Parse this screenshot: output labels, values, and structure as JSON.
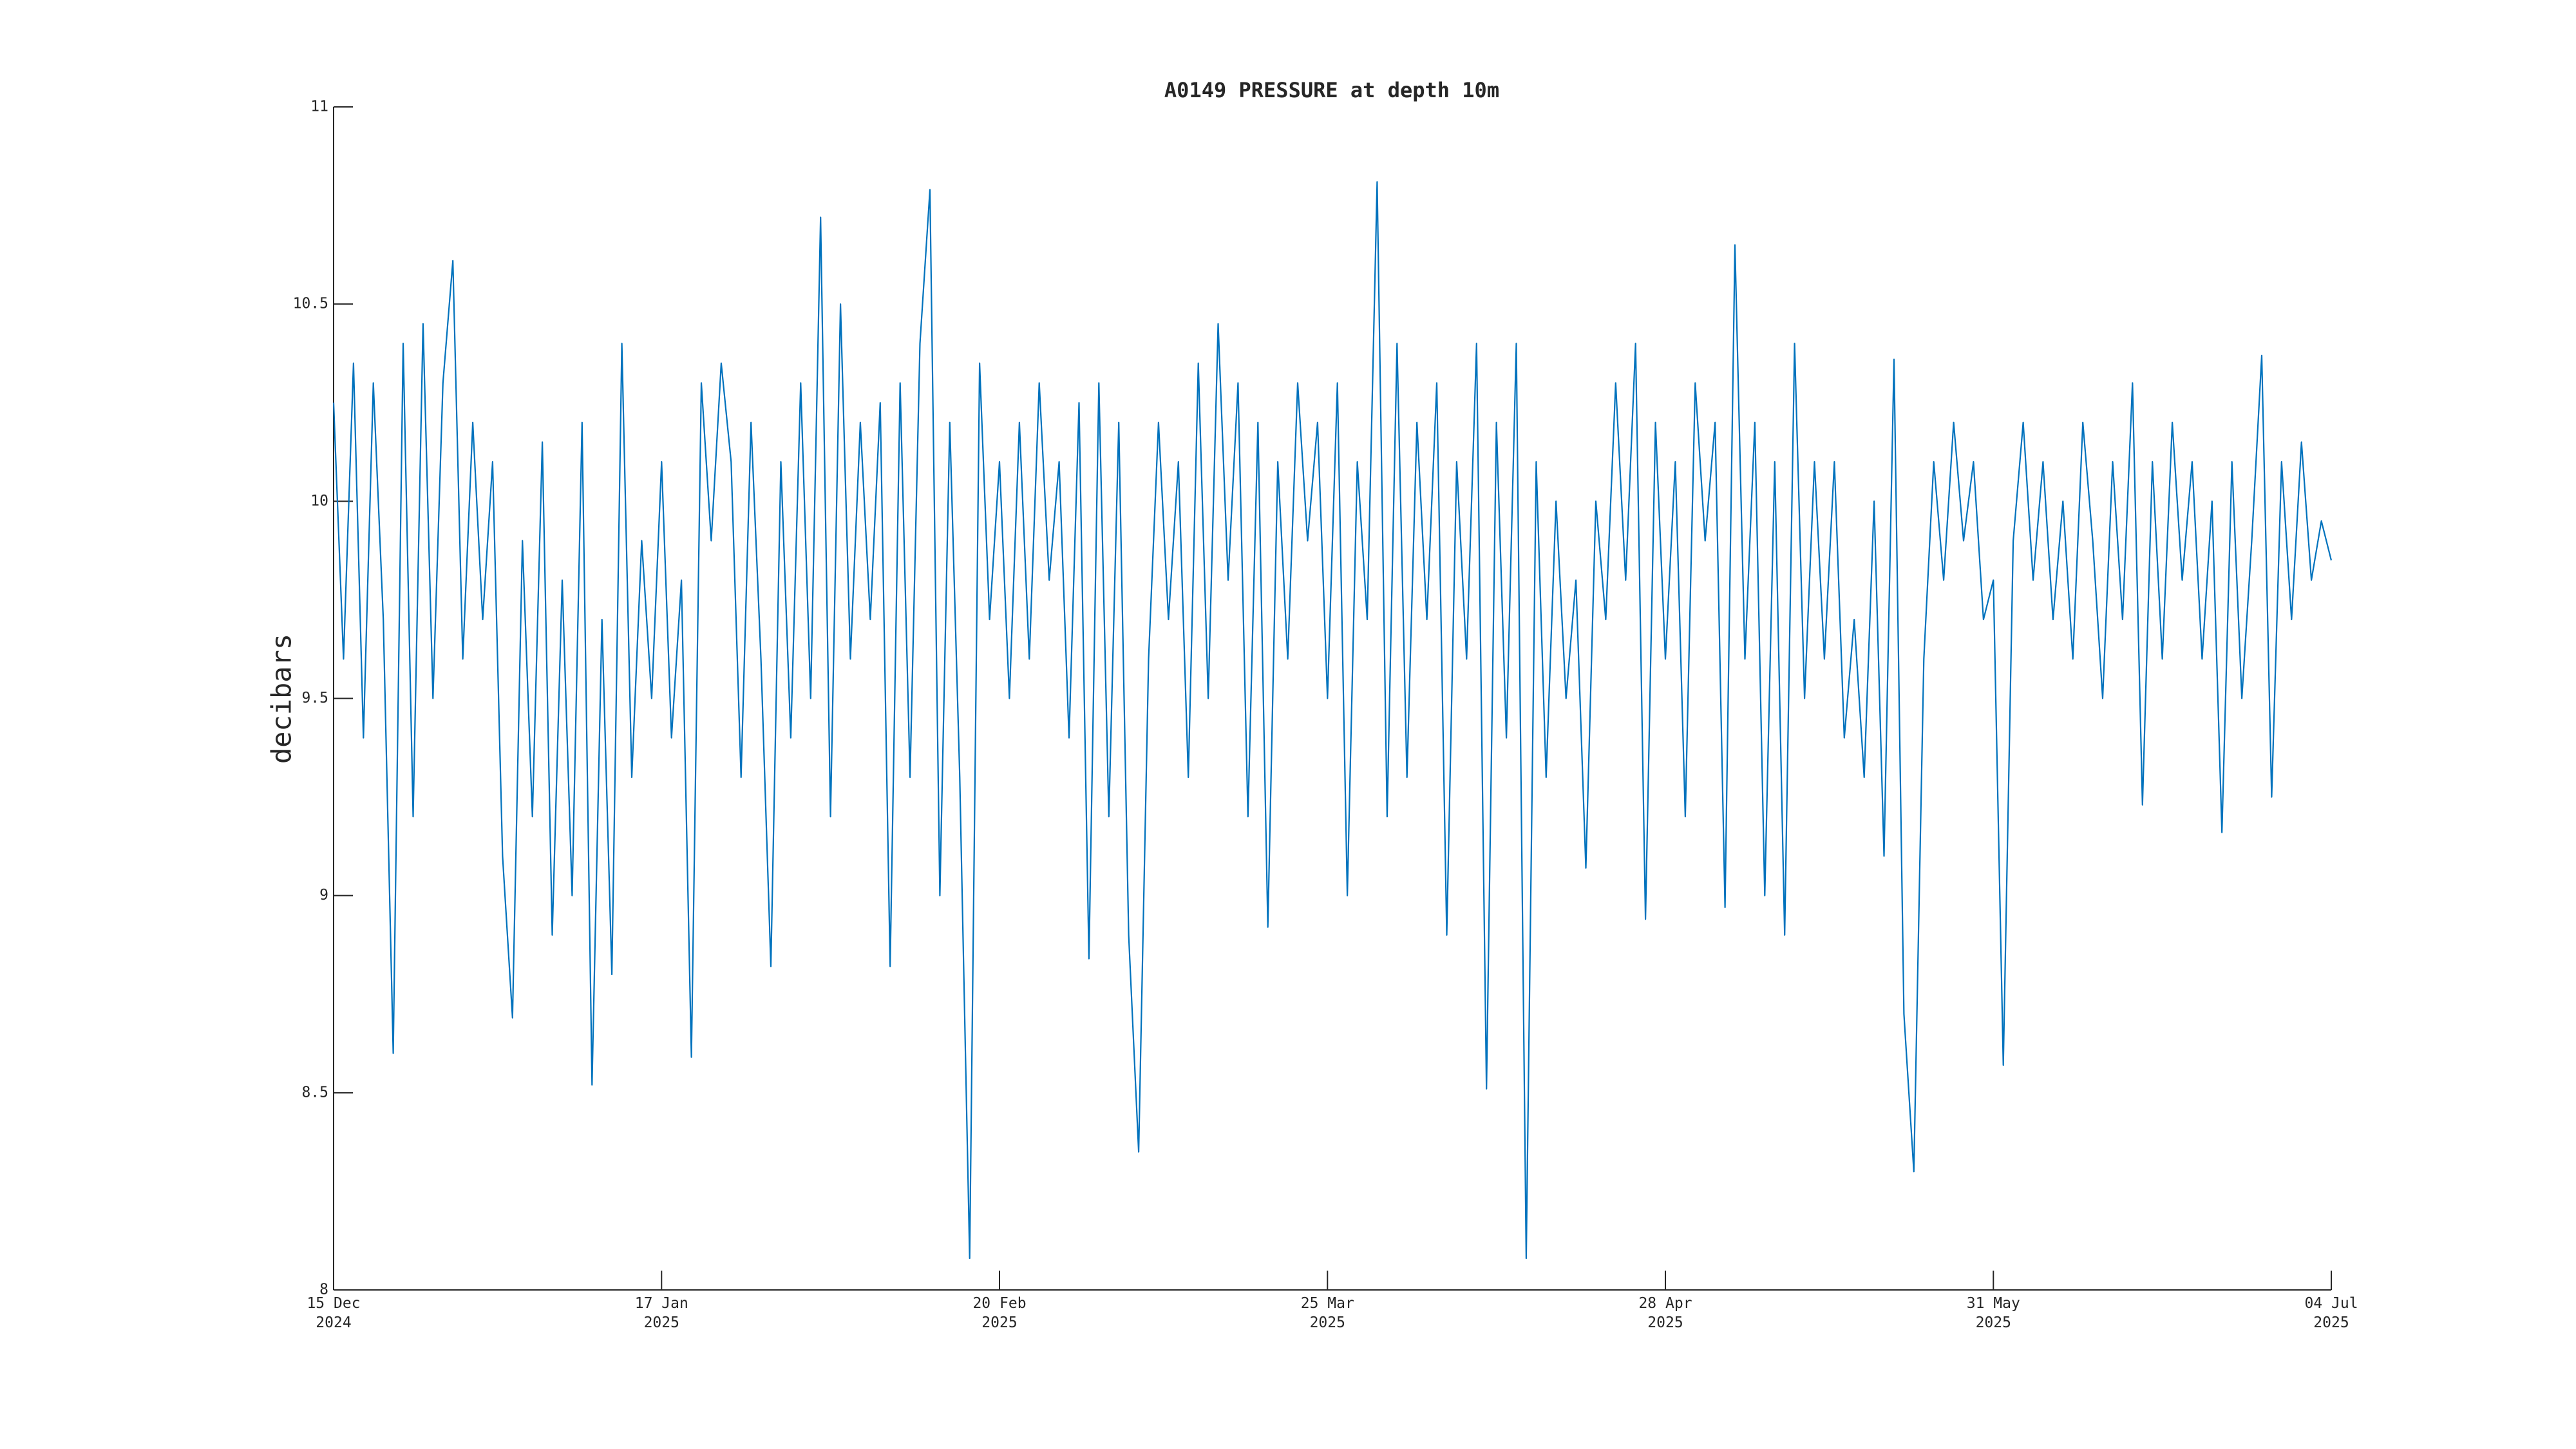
{
  "chart_data": {
    "type": "line",
    "title": "A0149 PRESSURE at depth 10m",
    "y_label": "decibars",
    "x": [
      "2024-12-15",
      "2024-12-16",
      "2024-12-17",
      "2024-12-18",
      "2024-12-19",
      "2024-12-20",
      "2024-12-21",
      "2024-12-22",
      "2024-12-23",
      "2024-12-24",
      "2024-12-25",
      "2024-12-26",
      "2024-12-27",
      "2024-12-28",
      "2024-12-29",
      "2024-12-30",
      "2024-12-31",
      "2025-01-01",
      "2025-01-02",
      "2025-01-03",
      "2025-01-04",
      "2025-01-05",
      "2025-01-06",
      "2025-01-07",
      "2025-01-08",
      "2025-01-09",
      "2025-01-10",
      "2025-01-11",
      "2025-01-12",
      "2025-01-13",
      "2025-01-14",
      "2025-01-15",
      "2025-01-16",
      "2025-01-17",
      "2025-01-18",
      "2025-01-19",
      "2025-01-20",
      "2025-01-21",
      "2025-01-22",
      "2025-01-23",
      "2025-01-24",
      "2025-01-25",
      "2025-01-26",
      "2025-01-27",
      "2025-01-28",
      "2025-01-29",
      "2025-01-30",
      "2025-01-31",
      "2025-02-01",
      "2025-02-02",
      "2025-02-03",
      "2025-02-04",
      "2025-02-05",
      "2025-02-06",
      "2025-02-07",
      "2025-02-08",
      "2025-02-09",
      "2025-02-10",
      "2025-02-11",
      "2025-02-12",
      "2025-02-13",
      "2025-02-14",
      "2025-02-15",
      "2025-02-16",
      "2025-02-17",
      "2025-02-18",
      "2025-02-19",
      "2025-02-20",
      "2025-02-21",
      "2025-02-22",
      "2025-02-23",
      "2025-02-24",
      "2025-02-25",
      "2025-02-26",
      "2025-02-27",
      "2025-02-28",
      "2025-03-01",
      "2025-03-02",
      "2025-03-03",
      "2025-03-04",
      "2025-03-05",
      "2025-03-06",
      "2025-03-07",
      "2025-03-08",
      "2025-03-09",
      "2025-03-10",
      "2025-03-11",
      "2025-03-12",
      "2025-03-13",
      "2025-03-14",
      "2025-03-15",
      "2025-03-16",
      "2025-03-17",
      "2025-03-18",
      "2025-03-19",
      "2025-03-20",
      "2025-03-21",
      "2025-03-22",
      "2025-03-23",
      "2025-03-24",
      "2025-03-25",
      "2025-03-26",
      "2025-03-27",
      "2025-03-28",
      "2025-03-29",
      "2025-03-30",
      "2025-03-31",
      "2025-04-01",
      "2025-04-02",
      "2025-04-03",
      "2025-04-04",
      "2025-04-05",
      "2025-04-06",
      "2025-04-07",
      "2025-04-08",
      "2025-04-09",
      "2025-04-10",
      "2025-04-11",
      "2025-04-12",
      "2025-04-13",
      "2025-04-14",
      "2025-04-15",
      "2025-04-16",
      "2025-04-17",
      "2025-04-18",
      "2025-04-19",
      "2025-04-20",
      "2025-04-21",
      "2025-04-22",
      "2025-04-23",
      "2025-04-24",
      "2025-04-25",
      "2025-04-26",
      "2025-04-27",
      "2025-04-28",
      "2025-04-29",
      "2025-04-30",
      "2025-05-01",
      "2025-05-02",
      "2025-05-03",
      "2025-05-04",
      "2025-05-05",
      "2025-05-06",
      "2025-05-07",
      "2025-05-08",
      "2025-05-09",
      "2025-05-10",
      "2025-05-11",
      "2025-05-12",
      "2025-05-13",
      "2025-05-14",
      "2025-05-15",
      "2025-05-16",
      "2025-05-17",
      "2025-05-18",
      "2025-05-19",
      "2025-05-20",
      "2025-05-21",
      "2025-05-22",
      "2025-05-23",
      "2025-05-24",
      "2025-05-25",
      "2025-05-26",
      "2025-05-27",
      "2025-05-28",
      "2025-05-29",
      "2025-05-30",
      "2025-05-31",
      "2025-06-01",
      "2025-06-02",
      "2025-06-03",
      "2025-06-04",
      "2025-06-05",
      "2025-06-06",
      "2025-06-07",
      "2025-06-08",
      "2025-06-09",
      "2025-06-10",
      "2025-06-11",
      "2025-06-12",
      "2025-06-13",
      "2025-06-14",
      "2025-06-15",
      "2025-06-16",
      "2025-06-17",
      "2025-06-18",
      "2025-06-19",
      "2025-06-20",
      "2025-06-21",
      "2025-06-22",
      "2025-06-23",
      "2025-06-24",
      "2025-06-25",
      "2025-06-26",
      "2025-06-27",
      "2025-06-28",
      "2025-06-29",
      "2025-06-30",
      "2025-07-01",
      "2025-07-02",
      "2025-07-03",
      "2025-07-04"
    ],
    "series": [
      {
        "color": "#0072bd",
        "values": [
          10.25,
          9.6,
          10.35,
          9.4,
          10.3,
          9.7,
          8.6,
          10.4,
          9.2,
          10.45,
          9.5,
          10.3,
          10.61,
          9.6,
          10.2,
          9.7,
          10.1,
          9.1,
          8.69,
          9.9,
          9.2,
          10.15,
          8.9,
          9.8,
          9.0,
          10.2,
          8.52,
          9.7,
          8.8,
          10.4,
          9.3,
          9.9,
          9.5,
          10.1,
          9.4,
          9.8,
          8.59,
          10.3,
          9.9,
          10.35,
          10.1,
          9.3,
          10.2,
          9.6,
          8.82,
          10.1,
          9.4,
          10.3,
          9.5,
          10.72,
          9.2,
          10.5,
          9.6,
          10.2,
          9.7,
          10.25,
          8.82,
          10.3,
          9.3,
          10.4,
          10.79,
          9.0,
          10.2,
          9.3,
          8.08,
          10.35,
          9.7,
          10.1,
          9.5,
          10.2,
          9.6,
          10.3,
          9.8,
          10.1,
          9.4,
          10.25,
          8.84,
          10.3,
          9.2,
          10.2,
          8.9,
          8.35,
          9.6,
          10.2,
          9.7,
          10.1,
          9.3,
          10.35,
          9.5,
          10.45,
          9.8,
          10.3,
          9.2,
          10.2,
          8.92,
          10.1,
          9.6,
          10.3,
          9.9,
          10.2,
          9.5,
          10.3,
          9.0,
          10.1,
          9.7,
          10.81,
          9.2,
          10.4,
          9.3,
          10.2,
          9.7,
          10.3,
          8.9,
          10.1,
          9.6,
          10.4,
          8.51,
          10.2,
          9.4,
          10.4,
          8.08,
          10.1,
          9.3,
          10.0,
          9.5,
          9.8,
          9.07,
          10.0,
          9.7,
          10.3,
          9.8,
          10.4,
          8.94,
          10.2,
          9.6,
          10.1,
          9.2,
          10.3,
          9.9,
          10.2,
          8.97,
          10.65,
          9.6,
          10.2,
          9.0,
          10.1,
          8.9,
          10.4,
          9.5,
          10.1,
          9.6,
          10.1,
          9.4,
          9.7,
          9.3,
          10.0,
          9.1,
          10.36,
          8.7,
          8.3,
          9.6,
          10.1,
          9.8,
          10.2,
          9.9,
          10.1,
          9.7,
          9.8,
          8.57,
          9.9,
          10.2,
          9.8,
          10.1,
          9.7,
          10.0,
          9.6,
          10.2,
          9.9,
          9.5,
          10.1,
          9.7,
          10.3,
          9.23,
          10.1,
          9.6,
          10.2,
          9.8,
          10.1,
          9.6,
          10.0,
          9.16,
          10.1,
          9.5,
          9.9,
          10.37,
          9.25,
          10.1,
          9.7,
          10.15,
          9.8,
          9.95,
          9.85
        ]
      }
    ],
    "xlim": [
      "2024-12-15",
      "2025-07-04"
    ],
    "xticks": [
      {
        "value": "2024-12-15",
        "label": "15 Dec 2024"
      },
      {
        "value": "2025-01-17",
        "label": "17 Jan 2025"
      },
      {
        "value": "2025-02-20",
        "label": "20 Feb 2025"
      },
      {
        "value": "2025-03-25",
        "label": "25 Mar 2025"
      },
      {
        "value": "2025-04-28",
        "label": "28 Apr 2025"
      },
      {
        "value": "2025-05-31",
        "label": "31 May 2025"
      },
      {
        "value": "2025-07-04",
        "label": "04 Jul 2025"
      }
    ],
    "ylim": [
      8,
      11
    ],
    "yticks": [
      8,
      8.5,
      9,
      9.5,
      10,
      10.5,
      11
    ],
    "grid": false
  }
}
